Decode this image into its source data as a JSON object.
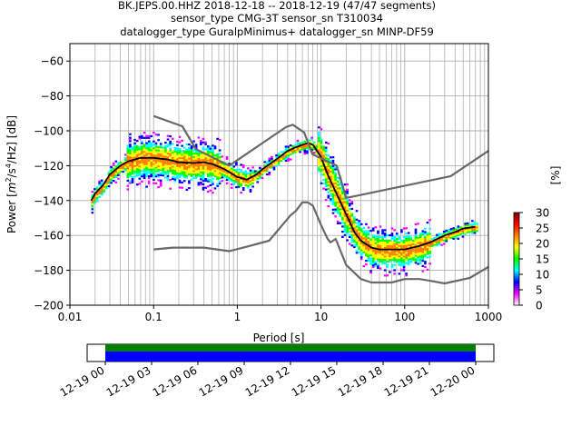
{
  "chart_data": {
    "type": "heatmap",
    "title_lines": [
      "BK.JEPS.00.HHZ   2018-12-18 -- 2018-12-19  (47/47 segments)",
      "sensor_type CMG-3T sensor_sn T310034",
      "datalogger_type GuralpMinimus+ datalogger_sn MINP-DF59"
    ],
    "xlabel": "Period [s]",
    "ylabel_parts": {
      "prefix": "Power [",
      "m": "m",
      "two": "2",
      "mid": "/s",
      "four": "4",
      "suffix": "/Hz] [dB]"
    },
    "xscale": "log",
    "xlim": [
      0.01,
      1000
    ],
    "ylim": [
      -200,
      -50
    ],
    "xticks": [
      {
        "value": 0.01,
        "label": "0.01"
      },
      {
        "value": 0.1,
        "label": "0.1"
      },
      {
        "value": 1,
        "label": "1"
      },
      {
        "value": 10,
        "label": "10"
      },
      {
        "value": 100,
        "label": "100"
      },
      {
        "value": 1000,
        "label": "1000"
      }
    ],
    "yticks": [
      {
        "value": -60,
        "label": "−60"
      },
      {
        "value": -80,
        "label": "−80"
      },
      {
        "value": -100,
        "label": "−100"
      },
      {
        "value": -120,
        "label": "−120"
      },
      {
        "value": -140,
        "label": "−140"
      },
      {
        "value": -160,
        "label": "−160"
      },
      {
        "value": -180,
        "label": "−180"
      },
      {
        "value": -200,
        "label": "−200"
      }
    ],
    "grid": true,
    "colorbar": {
      "label": "[%]",
      "range": [
        0,
        30
      ],
      "ticks": [
        {
          "value": 0,
          "label": "0"
        },
        {
          "value": 5,
          "label": "5"
        },
        {
          "value": 10,
          "label": "10"
        },
        {
          "value": 15,
          "label": "15"
        },
        {
          "value": 20,
          "label": "20"
        },
        {
          "value": 25,
          "label": "25"
        },
        {
          "value": 30,
          "label": "30"
        }
      ],
      "colors": [
        "#ffffff",
        "#ff00ff",
        "#0000ff",
        "#00ffff",
        "#00ff00",
        "#ffff00",
        "#ff8000",
        "#ff0000",
        "#800000"
      ]
    },
    "series": [
      {
        "role": "mean",
        "color": "#000000",
        "points": [
          [
            0.018,
            -140
          ],
          [
            0.02,
            -136
          ],
          [
            0.025,
            -131
          ],
          [
            0.03,
            -125
          ],
          [
            0.04,
            -120
          ],
          [
            0.05,
            -117.5
          ],
          [
            0.07,
            -115.5
          ],
          [
            0.1,
            -115.5
          ],
          [
            0.15,
            -116.5
          ],
          [
            0.2,
            -118
          ],
          [
            0.3,
            -118.5
          ],
          [
            0.4,
            -118
          ],
          [
            0.5,
            -119
          ],
          [
            0.7,
            -122
          ],
          [
            1,
            -126.5
          ],
          [
            1.3,
            -128
          ],
          [
            1.7,
            -125
          ],
          [
            2,
            -122
          ],
          [
            3,
            -116
          ],
          [
            4,
            -111.5
          ],
          [
            5,
            -109.5
          ],
          [
            6,
            -108
          ],
          [
            7,
            -107
          ],
          [
            8,
            -108
          ],
          [
            10,
            -115
          ],
          [
            12,
            -125
          ],
          [
            15,
            -135
          ],
          [
            20,
            -148
          ],
          [
            25,
            -158
          ],
          [
            30,
            -163
          ],
          [
            40,
            -167
          ],
          [
            50,
            -168
          ],
          [
            70,
            -168
          ],
          [
            100,
            -168
          ],
          [
            150,
            -166
          ],
          [
            200,
            -164
          ],
          [
            300,
            -160
          ],
          [
            400,
            -158
          ],
          [
            500,
            -156
          ],
          [
            700,
            -155
          ]
        ]
      },
      {
        "role": "NHNM",
        "color": "#696969",
        "points": [
          [
            0.1,
            -91.5
          ],
          [
            0.22,
            -97.4
          ],
          [
            0.32,
            -110.5
          ],
          [
            0.8,
            -120
          ],
          [
            3.8,
            -97.9
          ],
          [
            4.6,
            -96.5
          ],
          [
            6.3,
            -101
          ],
          [
            7.9,
            -113.5
          ],
          [
            15.4,
            -120
          ],
          [
            20,
            -138.5
          ],
          [
            354.8,
            -126
          ],
          [
            1000,
            -111.5
          ]
        ]
      },
      {
        "role": "NLNM",
        "color": "#696969",
        "points": [
          [
            0.1,
            -168
          ],
          [
            0.17,
            -167
          ],
          [
            0.4,
            -167
          ],
          [
            0.8,
            -169
          ],
          [
            1.24,
            -166.7
          ],
          [
            2.4,
            -163
          ],
          [
            4.3,
            -148.6
          ],
          [
            5,
            -146
          ],
          [
            6,
            -141
          ],
          [
            7,
            -141.1
          ],
          [
            8,
            -143
          ],
          [
            10,
            -154
          ],
          [
            12,
            -162
          ],
          [
            13,
            -164
          ],
          [
            15,
            -162
          ],
          [
            20,
            -177
          ],
          [
            30,
            -185
          ],
          [
            40,
            -187
          ],
          [
            70,
            -187
          ],
          [
            100,
            -185
          ],
          [
            150,
            -185
          ],
          [
            200,
            -186
          ],
          [
            300,
            -187.5
          ],
          [
            600,
            -184.4
          ],
          [
            1000,
            -178
          ]
        ]
      }
    ],
    "timeline": {
      "tick_labels": [
        "12-19 00",
        "12-19 03",
        "12-19 06",
        "12-19 09",
        "12-19 12",
        "12-19 15",
        "12-19 18",
        "12-19 21",
        "12-20 00"
      ],
      "coverage_fraction": [
        0.0,
        1.0
      ],
      "data_color": "#008000",
      "used_color": "#0000ff"
    }
  }
}
